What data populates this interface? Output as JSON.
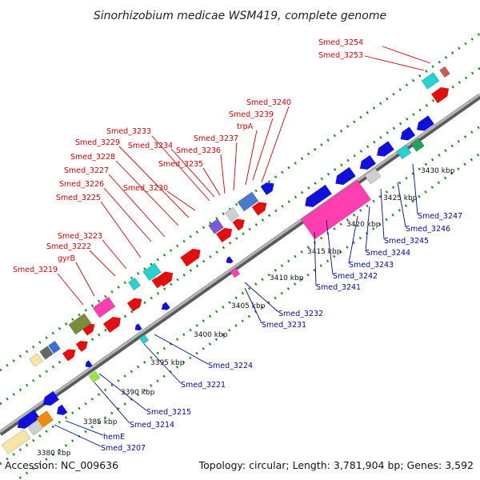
{
  "title": "Sinorhizobium medicae WSM419, complete genome",
  "footer": {
    "accession": "Accession: NC_009636",
    "summary": "Topology: circular; Length: 3,781,904 bp; Genes: 3,592"
  },
  "ticks": [
    "3380 kbp",
    "3385 kbp",
    "3390 kbp",
    "3395 kbp",
    "3400 kbp",
    "3405 kbp",
    "3410 kbp",
    "3415 kbp",
    "3420 kbp",
    "3425 kbp",
    "3430 kbp"
  ],
  "labels_top": [
    "Smed_3254",
    "Smed_3253",
    "Smed_3240",
    "Smed_3239",
    "trpA",
    "Smed_3237",
    "Smed_3233",
    "Smed_3234",
    "Smed_3236",
    "Smed_3229",
    "Smed_3235",
    "Smed_3228",
    "Smed_3227",
    "Smed_3230",
    "Smed_3226",
    "Smed_3225",
    "Smed_3223",
    "Smed_3222",
    "gyrB",
    "Smed_3219"
  ],
  "labels_bottom": [
    "Smed_3247",
    "Smed_3246",
    "Smed_3245",
    "Smed_3244",
    "Smed_3243",
    "Smed_3242",
    "Smed_3241",
    "Smed_3232",
    "Smed_3231",
    "Smed_3224",
    "Smed_3221",
    "Smed_3215",
    "Smed_3214",
    "hemE",
    "Smed_3207"
  ],
  "colors": {
    "top_label": "#d40000",
    "bottom_label": "#000a9a",
    "cds_forward": "#e01010",
    "cds_reverse": "#1010d8",
    "axis": "#8a8a8a",
    "dots": "#1a8a1a"
  }
}
